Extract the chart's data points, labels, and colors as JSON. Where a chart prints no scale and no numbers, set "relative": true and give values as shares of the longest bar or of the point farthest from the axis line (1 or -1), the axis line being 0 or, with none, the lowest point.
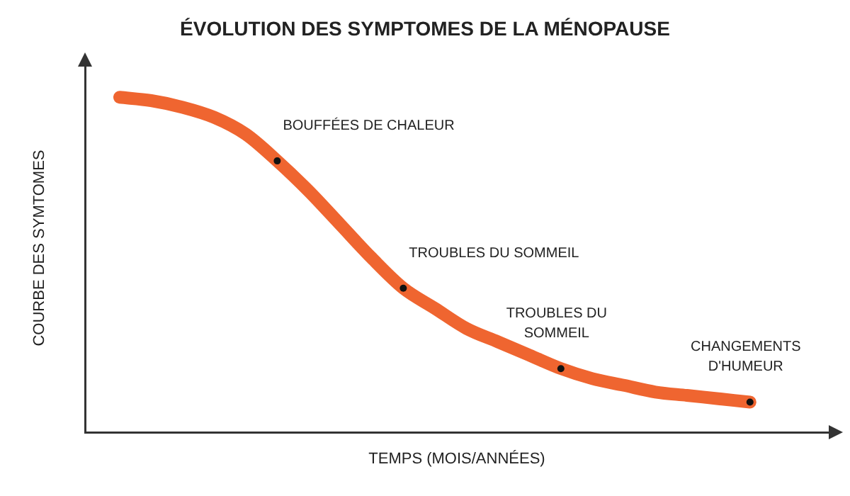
{
  "chart_data": {
    "type": "line",
    "title": "ÉVOLUTION DES SYMPTOMES DE LA MÉNOPAUSE",
    "xlabel": "TEMPS (MOIS/ANNÉES)",
    "ylabel": "COURBE DES SYMTOMES",
    "relative": true,
    "grid": false,
    "legend": false,
    "marker": "none",
    "categories": [
      null,
      null,
      null,
      null,
      null,
      null,
      null,
      null,
      null,
      null,
      null,
      null,
      null,
      null,
      null,
      null,
      null,
      null,
      null,
      null,
      null
    ],
    "series": [
      {
        "color": "#ef6530",
        "values": [
          1,
          0.99,
          0.97,
          0.94,
          0.89,
          0.81,
          0.72,
          0.62,
          0.52,
          0.43,
          0.37,
          0.31,
          0.27,
          0.23,
          0.19,
          0.16,
          0.14,
          0.12,
          0.11,
          0.1,
          0.09
        ]
      }
    ],
    "annotations": [
      "BOUFFÉES DE CHALEUR",
      "TROUBLES DU SOMMEIL",
      "TROUBLES DU\nSOMMEIL",
      "CHANGEMENTS\nD'HUMEUR"
    ]
  }
}
